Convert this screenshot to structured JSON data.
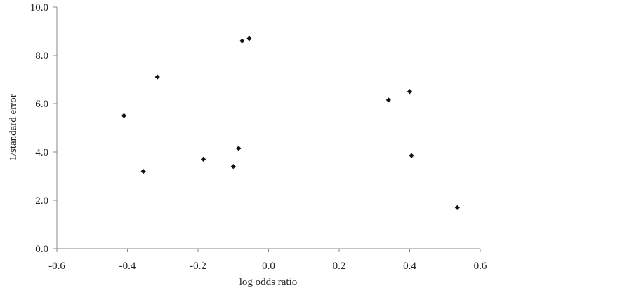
{
  "chart_data": {
    "type": "scatter",
    "title": "",
    "xlabel": "log odds ratio",
    "ylabel": "1/standard error",
    "xlim": [
      -0.6,
      0.6
    ],
    "ylim": [
      0.0,
      10.0
    ],
    "x_ticks": [
      "-0.6",
      "-0.4",
      "-0.2",
      "0.0",
      "0.2",
      "0.4",
      "0.6"
    ],
    "y_ticks": [
      "0.0",
      "2.0",
      "4.0",
      "6.0",
      "8.0",
      "10.0"
    ],
    "grid": false,
    "legend": "none",
    "marker": "diamond",
    "colors": {
      "marker": "#111111",
      "axis": "#888888",
      "text": "#222222"
    },
    "points": [
      {
        "x": -0.41,
        "y": 5.5
      },
      {
        "x": -0.355,
        "y": 3.2
      },
      {
        "x": -0.315,
        "y": 7.1
      },
      {
        "x": -0.185,
        "y": 3.7
      },
      {
        "x": -0.1,
        "y": 3.4
      },
      {
        "x": -0.085,
        "y": 4.15
      },
      {
        "x": -0.075,
        "y": 8.6
      },
      {
        "x": -0.055,
        "y": 8.7
      },
      {
        "x": 0.34,
        "y": 6.15
      },
      {
        "x": 0.4,
        "y": 6.5
      },
      {
        "x": 0.405,
        "y": 3.85
      },
      {
        "x": 0.535,
        "y": 1.7
      }
    ]
  }
}
